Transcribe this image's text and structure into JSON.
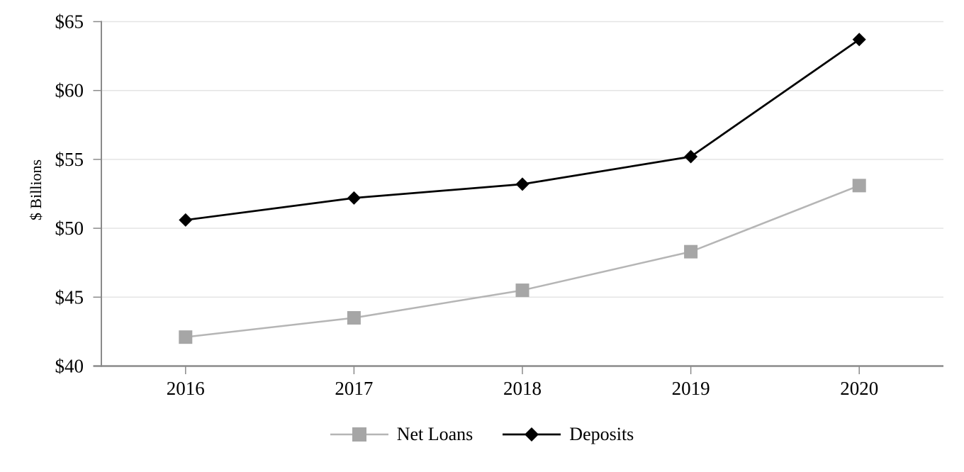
{
  "chart_data": {
    "type": "line",
    "categories": [
      "2016",
      "2017",
      "2018",
      "2019",
      "2020"
    ],
    "series": [
      {
        "name": "Net Loans",
        "values": [
          42.1,
          43.5,
          45.5,
          48.3,
          53.1
        ],
        "line_color": "#b5b5b5",
        "marker_color": "#a6a6a6",
        "marker": "square",
        "line_width": 2.5
      },
      {
        "name": "Deposits",
        "values": [
          50.6,
          52.2,
          53.2,
          55.2,
          63.7
        ],
        "line_color": "#000000",
        "marker_color": "#000000",
        "marker": "diamond",
        "line_width": 2.75
      }
    ],
    "title": "",
    "xlabel": "",
    "ylabel": "$ Billions",
    "ylim": [
      40,
      65
    ],
    "yticks": [
      40,
      45,
      50,
      55,
      60,
      65
    ],
    "ytick_labels": [
      "$40",
      "$45",
      "$50",
      "$55",
      "$60",
      "$65"
    ],
    "grid": "horizontal",
    "legend_position": "bottom center"
  },
  "axis": {
    "line_color": "#8a8a8a",
    "gridline_color": "#e4e4e4",
    "text_color": "#000000",
    "background": "#ffffff"
  }
}
